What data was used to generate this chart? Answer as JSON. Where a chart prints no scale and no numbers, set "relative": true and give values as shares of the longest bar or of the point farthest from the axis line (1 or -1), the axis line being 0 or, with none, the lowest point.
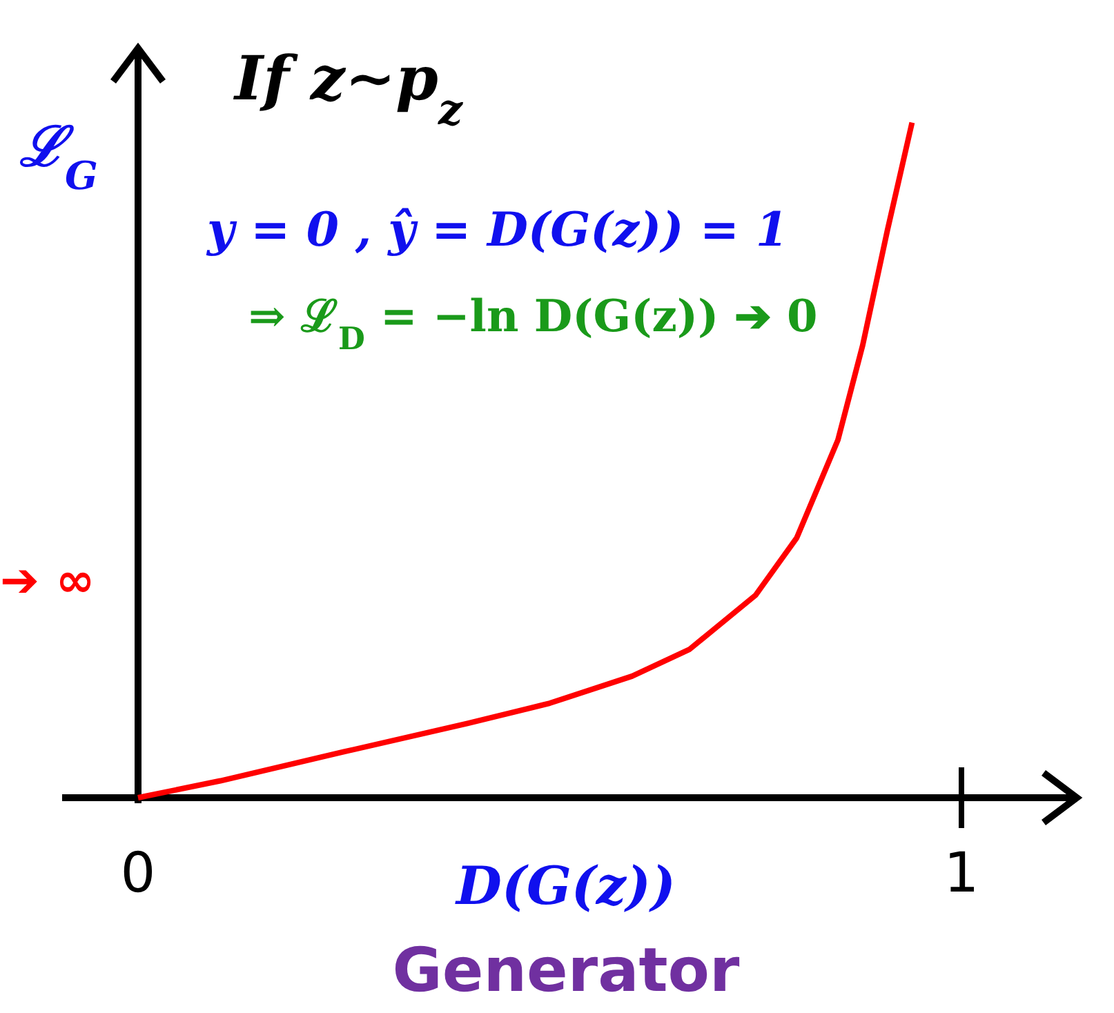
{
  "chart_data": {
    "type": "line",
    "title": "If z∼p$_{z}$",
    "ylabel": "ℒ$_{G}$",
    "xlabel": "D(G(z))",
    "relative": true,
    "xlim": [
      0,
      1.14
    ],
    "xticks": [
      0,
      1
    ],
    "x": [
      0,
      0.1,
      0.25,
      0.4,
      0.5,
      0.6,
      0.67,
      0.75,
      0.8,
      0.85,
      0.88,
      0.91,
      0.94
    ],
    "series": [
      {
        "color": "#ff0000",
        "values": [
          0,
          0.025,
          0.068,
          0.11,
          0.14,
          0.18,
          0.22,
          0.3,
          0.385,
          0.53,
          0.67,
          0.84,
          1
        ]
      }
    ],
    "annotations": [
      "y = 0 , ŷ = D(G(z)) = 1",
      "⇒ ℒ$_{D}$ = −ln D(G(z))  ➔ 0",
      "➔ ∞",
      "Generator"
    ],
    "grid": false,
    "line_style": "solid"
  }
}
